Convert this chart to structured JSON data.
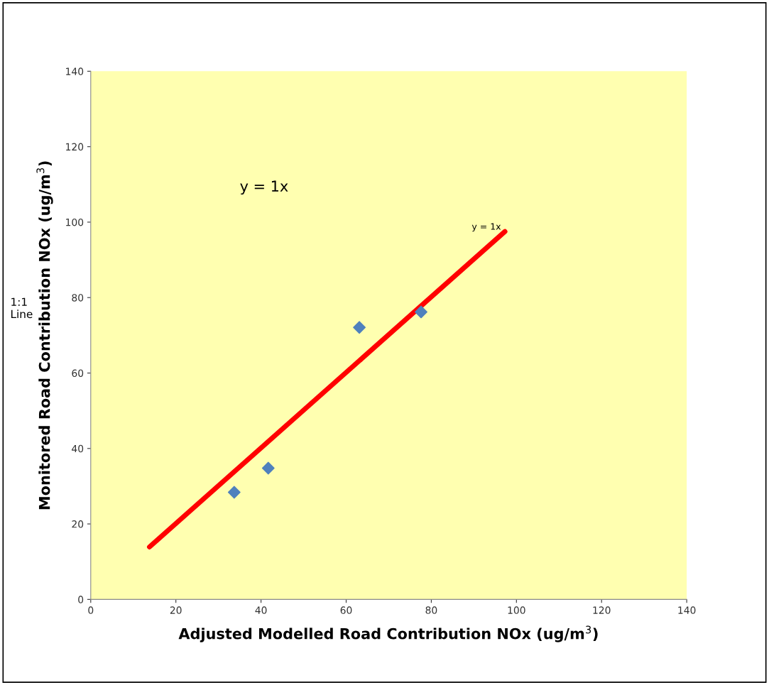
{
  "chart_data": {
    "type": "scatter",
    "xlabel": "Adjusted Modelled Road Contribution NOx (ug/m$^{3}$)",
    "ylabel": "Monitored Road Contribution NOx (ug/m$^{3}$)",
    "series": [
      {
        "color": "#4f81bd",
        "x": [
          33.7,
          41.7,
          63.1,
          77.6
        ],
        "values": [
          28.4,
          34.8,
          72.1,
          76.2
        ],
        "marker": "diamond"
      },
      {
        "type": "line",
        "color": "#ff0000",
        "x": [
          13.8,
          97.3
        ],
        "values": [
          13.9,
          97.5
        ],
        "marker": "none"
      }
    ],
    "annotations": [
      "y = 1x",
      "1:1\nLine",
      {
        "text": "y = 1x",
        "x": 97.3,
        "y": 97.5
      }
    ],
    "xlim": [
      0,
      140
    ],
    "ylim": [
      0,
      140
    ],
    "xticks": [
      0,
      20,
      40,
      60,
      80,
      100,
      120,
      140
    ],
    "yticks": [
      0,
      20,
      40,
      60,
      80,
      100,
      120,
      140
    ],
    "grid": false,
    "legend": false
  }
}
